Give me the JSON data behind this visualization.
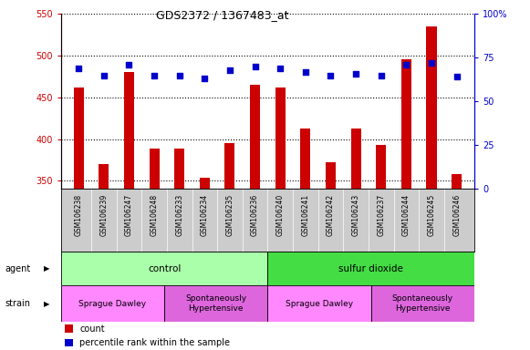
{
  "title": "GDS2372 / 1367483_at",
  "samples": [
    "GSM106238",
    "GSM106239",
    "GSM106247",
    "GSM106248",
    "GSM106233",
    "GSM106234",
    "GSM106235",
    "GSM106236",
    "GSM106240",
    "GSM106241",
    "GSM106242",
    "GSM106243",
    "GSM106237",
    "GSM106244",
    "GSM106245",
    "GSM106246"
  ],
  "counts": [
    462,
    370,
    480,
    388,
    388,
    354,
    395,
    465,
    462,
    413,
    372,
    413,
    393,
    496,
    535,
    358
  ],
  "percentiles": [
    69,
    65,
    71,
    65,
    65,
    63,
    68,
    70,
    69,
    67,
    65,
    66,
    65,
    71,
    72,
    64
  ],
  "ylim_left": [
    340,
    550
  ],
  "ylim_right": [
    0,
    100
  ],
  "yticks_left": [
    350,
    400,
    450,
    500,
    550
  ],
  "yticks_right": [
    0,
    25,
    50,
    75,
    100
  ],
  "bar_color": "#cc0000",
  "dot_color": "#0000cc",
  "bg_color": "#ffffff",
  "xlabels_bg": "#cccccc",
  "agent_groups": [
    {
      "label": "control",
      "start": 0,
      "end": 8,
      "color": "#aaffaa"
    },
    {
      "label": "sulfur dioxide",
      "start": 8,
      "end": 16,
      "color": "#44dd44"
    }
  ],
  "strain_groups": [
    {
      "label": "Sprague Dawley",
      "start": 0,
      "end": 4,
      "color": "#ff88ff"
    },
    {
      "label": "Spontaneously\nHypertensive",
      "start": 4,
      "end": 8,
      "color": "#dd66dd"
    },
    {
      "label": "Sprague Dawley",
      "start": 8,
      "end": 12,
      "color": "#ff88ff"
    },
    {
      "label": "Spontaneously\nHypertensive",
      "start": 12,
      "end": 16,
      "color": "#dd66dd"
    }
  ],
  "agent_label": "agent",
  "strain_label": "strain",
  "legend_count_label": "count",
  "legend_pct_label": "percentile rank within the sample",
  "bar_width": 0.4
}
